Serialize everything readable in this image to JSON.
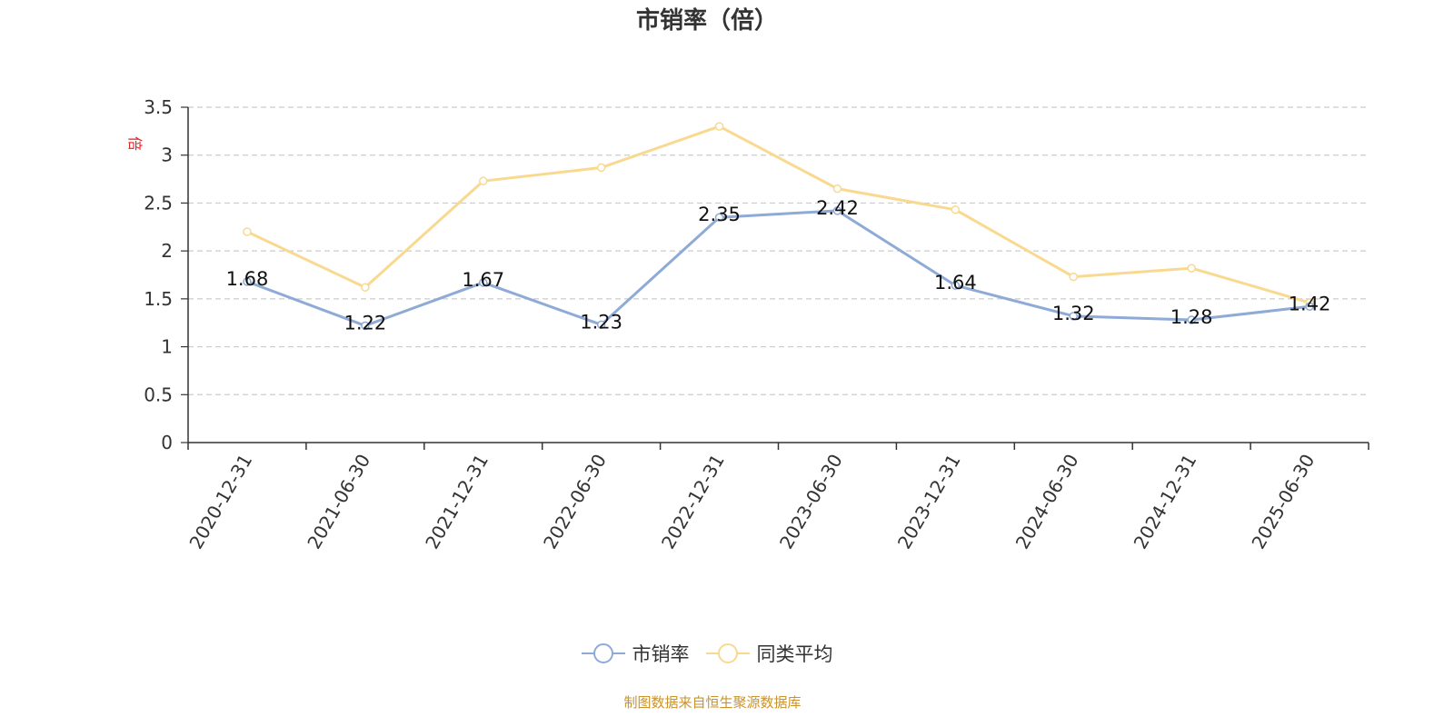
{
  "chart_data": {
    "type": "line",
    "title": "市销率（倍）",
    "ylabel": "倍",
    "categories": [
      "2020-12-31",
      "2021-06-30",
      "2021-12-31",
      "2022-06-30",
      "2022-12-31",
      "2023-06-30",
      "2023-12-31",
      "2024-06-30",
      "2024-12-31",
      "2025-06-30"
    ],
    "series": [
      {
        "name": "市销率",
        "color": "#8eaad6",
        "values": [
          1.68,
          1.22,
          1.67,
          1.23,
          2.35,
          2.42,
          1.64,
          1.32,
          1.28,
          1.42
        ],
        "labels": [
          "1.68",
          "1.22",
          "1.67",
          "1.23",
          "2.35",
          "2.42",
          "1.64",
          "1.32",
          "1.28",
          "1.42"
        ]
      },
      {
        "name": "同类平均",
        "color": "#f9d98f",
        "values": [
          2.2,
          1.62,
          2.73,
          2.87,
          3.3,
          2.65,
          2.43,
          1.73,
          1.82,
          1.46
        ]
      }
    ],
    "yticks": [
      "0",
      "0.5",
      "1",
      "1.5",
      "2",
      "2.5",
      "3",
      "3.5"
    ],
    "ylim": [
      0,
      3.5
    ],
    "grid": true,
    "legend_position": "bottom"
  },
  "source": "制图数据来自恒生聚源数据库"
}
